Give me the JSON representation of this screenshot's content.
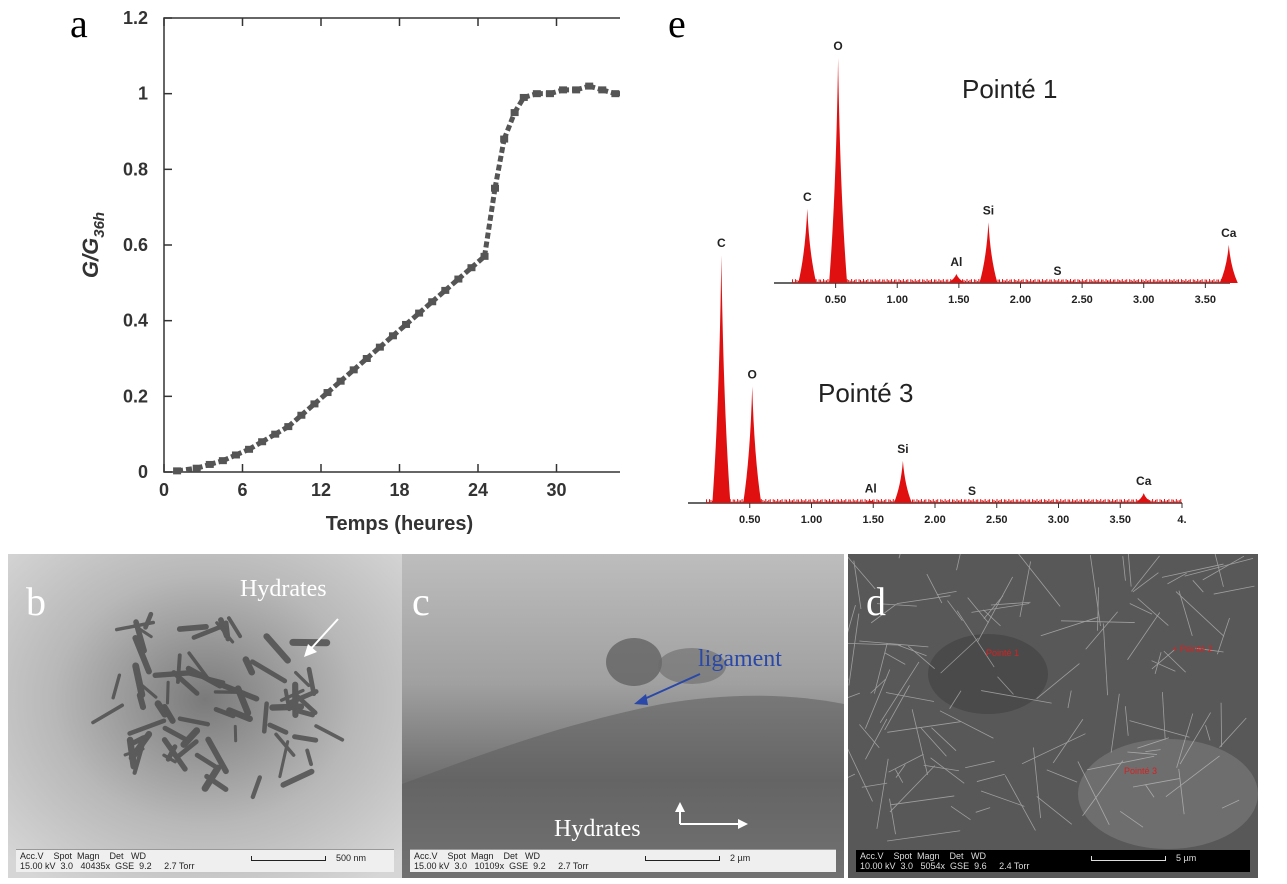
{
  "panels": {
    "a": {
      "letter": "a"
    },
    "e": {
      "letter": "e"
    },
    "b": {
      "letter": "b",
      "annotation": "Hydrates",
      "scalebar": {
        "meta": "Acc.V    Spot  Magn    Det   WD\n15.00 kV  3.0   40435x  GSE  9.2     2.7 Torr",
        "length": "500 nm"
      }
    },
    "c": {
      "letter": "c",
      "annotation_blue": "ligament",
      "annotation_white": "Hydrates",
      "scalebar": {
        "meta": "Acc.V    Spot  Magn    Det   WD\n15.00 kV  3.0   10109x  GSE  9.2     2.7 Torr",
        "length": "2 µm"
      }
    },
    "d": {
      "letter": "d",
      "points": [
        "Pointé 1",
        "+ Pointé 2",
        "Pointé 3"
      ],
      "scalebar": {
        "meta": "Acc.V    Spot  Magn    Det   WD\n10.00 kV  3.0   5054x  GSE  9.6     2.4 Torr",
        "length": "5 µm"
      }
    }
  },
  "chart_data": [
    {
      "type": "scatter",
      "panel": "a",
      "xlabel": "Temps (heures)",
      "ylabel_main": "G/G",
      "ylabel_sub": "36h",
      "xlim": [
        0,
        36
      ],
      "ylim": [
        0,
        1.2
      ],
      "xticks": [
        "0",
        "6",
        "12",
        "18",
        "24",
        "30",
        "36"
      ],
      "yticks": [
        "0",
        "0.2",
        "0.4",
        "0.6",
        "0.8",
        "1",
        "1.2"
      ],
      "marker_color": "#555555",
      "x": [
        1,
        2.5,
        3.5,
        4.5,
        5.5,
        6.5,
        7.5,
        8.5,
        9.5,
        10.5,
        11.5,
        12.5,
        13.5,
        14.5,
        15.5,
        16.5,
        17.5,
        18.5,
        19.5,
        20.5,
        21.5,
        22.5,
        23.5,
        24.5,
        25.3,
        26,
        26.8,
        27.5,
        28.5,
        29.5,
        30.5,
        31.5,
        32.5,
        33.5,
        34.5,
        35.5,
        36
      ],
      "y": [
        0.003,
        0.01,
        0.02,
        0.03,
        0.045,
        0.06,
        0.08,
        0.1,
        0.12,
        0.15,
        0.18,
        0.21,
        0.24,
        0.27,
        0.3,
        0.33,
        0.36,
        0.39,
        0.42,
        0.45,
        0.48,
        0.51,
        0.54,
        0.57,
        0.75,
        0.88,
        0.95,
        0.99,
        1.0,
        1.0,
        1.01,
        1.01,
        1.02,
        1.01,
        1.0,
        1.0,
        1.0
      ]
    },
    {
      "type": "bar",
      "panel": "e-inset",
      "label": "Pointé 1",
      "xlim": [
        0,
        3.7
      ],
      "xticks": [
        "0.50",
        "1.00",
        "1.50",
        "2.00",
        "2.50",
        "3.00",
        "3.50"
      ],
      "color": "#e01010",
      "peaks": [
        {
          "element": "C",
          "x": 0.27,
          "height": 0.33
        },
        {
          "element": "O",
          "x": 0.52,
          "height": 1.0
        },
        {
          "element": "Al",
          "x": 1.48,
          "height": 0.04
        },
        {
          "element": "Si",
          "x": 1.74,
          "height": 0.27
        },
        {
          "element": "S",
          "x": 2.3,
          "height": 0.0
        },
        {
          "element": "Ca",
          "x": 3.69,
          "height": 0.17
        }
      ]
    },
    {
      "type": "bar",
      "panel": "e-main",
      "label": "Pointé 3",
      "xlim": [
        0,
        4.0
      ],
      "xticks": [
        "0.50",
        "1.00",
        "1.50",
        "2.00",
        "2.50",
        "3.00",
        "3.50",
        "4."
      ],
      "color": "#e01010",
      "peaks": [
        {
          "element": "C",
          "x": 0.27,
          "height": 1.0
        },
        {
          "element": "O",
          "x": 0.52,
          "height": 0.47
        },
        {
          "element": "Al",
          "x": 1.48,
          "height": 0.01
        },
        {
          "element": "Si",
          "x": 1.74,
          "height": 0.17
        },
        {
          "element": "S",
          "x": 2.3,
          "height": 0.0
        },
        {
          "element": "Ca",
          "x": 3.69,
          "height": 0.04
        }
      ]
    }
  ]
}
